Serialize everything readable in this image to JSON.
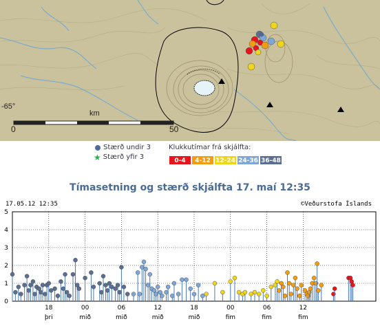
{
  "map": {
    "lat_label": "-65°",
    "scale_unit": "km",
    "scale_start": "0",
    "scale_end": "50",
    "colors": {
      "terrain": "#c9c29c",
      "contour": "#9a8d68",
      "water": "#6fa7d6",
      "glacier": "#e6f4f7",
      "volcano": "#000000"
    }
  },
  "legend": {
    "under": "Stærð undir 3",
    "over": "Stærð yfir 3",
    "hours_title": "Klukkutímar frá skjálfta:",
    "bins": [
      {
        "label": "0-4",
        "color": "#e8141c"
      },
      {
        "label": "4-12",
        "color": "#f39c12"
      },
      {
        "label": "12-24",
        "color": "#f1d51a"
      },
      {
        "label": "24-36",
        "color": "#7fa7d6"
      },
      {
        "label": "36-48",
        "color": "#5a6f92"
      }
    ]
  },
  "chart_title": "Tímasetning og stærð skjálfta   17. maí 12:35",
  "timestamp": "17.05.12 12:35",
  "copyright": "©Veðurstofa Íslands",
  "chart_data": {
    "type": "scatter",
    "x_ticks": [
      {
        "t": "18",
        "d": "þri"
      },
      {
        "t": "00",
        "d": "mið"
      },
      {
        "t": "06",
        "d": "mið"
      },
      {
        "t": "12",
        "d": "mið"
      },
      {
        "t": "18",
        "d": "mið"
      },
      {
        "t": "00",
        "d": "fim"
      },
      {
        "t": "06",
        "d": "fim"
      },
      {
        "t": "12",
        "d": "fim"
      }
    ],
    "xlim_hours": [
      -48,
      0
    ],
    "ylim": [
      0,
      5
    ],
    "y_ticks": [
      0,
      1,
      2,
      3,
      4,
      5
    ],
    "grid": true,
    "points": [
      [
        -48,
        1.5
      ],
      [
        -47.5,
        0.5
      ],
      [
        -47,
        0.8
      ],
      [
        -46.6,
        0.4
      ],
      [
        -46,
        0.9
      ],
      [
        -45.6,
        1.4
      ],
      [
        -45.3,
        0.6
      ],
      [
        -45,
        0.9
      ],
      [
        -44.6,
        1.1
      ],
      [
        -44.3,
        0.4
      ],
      [
        -44,
        0.8
      ],
      [
        -43.6,
        0.7
      ],
      [
        -43.3,
        0.5
      ],
      [
        -43,
        0.9
      ],
      [
        -42.6,
        0.4
      ],
      [
        -42.3,
        0.9
      ],
      [
        -42,
        1.0
      ],
      [
        -41.6,
        0.6
      ],
      [
        -41,
        0.7
      ],
      [
        -40.5,
        0.3
      ],
      [
        -40,
        1.1
      ],
      [
        -39.6,
        0.7
      ],
      [
        -39.3,
        1.5
      ],
      [
        -39,
        0.5
      ],
      [
        -38.6,
        0.3
      ],
      [
        -38,
        1.5
      ],
      [
        -37.6,
        2.3
      ],
      [
        -37.3,
        0.9
      ],
      [
        -37,
        0.7
      ],
      [
        -36,
        1.3
      ],
      [
        -35,
        1.6
      ],
      [
        -34.6,
        0.8
      ],
      [
        -33.6,
        1.0
      ],
      [
        -33.3,
        0.5
      ],
      [
        -33,
        1.4
      ],
      [
        -32.6,
        0.9
      ],
      [
        -32.3,
        0.6
      ],
      [
        -32,
        1.0
      ],
      [
        -31.6,
        0.8
      ],
      [
        -31,
        0.7
      ],
      [
        -30.6,
        0.9
      ],
      [
        -30.3,
        0.5
      ],
      [
        -30,
        1.9
      ],
      [
        -29.6,
        0.8
      ],
      [
        -29,
        0.4
      ],
      [
        -28,
        0.4
      ],
      [
        -27.3,
        1.6
      ],
      [
        -27,
        0.4
      ],
      [
        -26.6,
        1.9
      ],
      [
        -26.3,
        2.2
      ],
      [
        -26,
        1.8
      ],
      [
        -25.6,
        0.9
      ],
      [
        -25.3,
        1.5
      ],
      [
        -25,
        0.7
      ],
      [
        -24.6,
        0.6
      ],
      [
        -24.3,
        0.4
      ],
      [
        -24,
        0.8
      ],
      [
        -23.6,
        0.5
      ],
      [
        -23.3,
        0.3
      ],
      [
        -22.6,
        0.5
      ],
      [
        -22.3,
        0.8
      ],
      [
        -21.6,
        0.3
      ],
      [
        -21.3,
        1.0
      ],
      [
        -20.6,
        0.4
      ],
      [
        -20,
        1.2
      ],
      [
        -19.3,
        1.2
      ],
      [
        -18.6,
        0.7
      ],
      [
        -18,
        0.4
      ],
      [
        -17.3,
        0.9
      ],
      [
        -16.6,
        0.3
      ],
      [
        -16,
        0.4
      ],
      [
        -14.6,
        1.0
      ],
      [
        -13.3,
        0.5
      ],
      [
        -12,
        1.1
      ],
      [
        -11.3,
        1.3
      ],
      [
        -10.6,
        0.5
      ],
      [
        -10,
        0.4
      ],
      [
        -9.6,
        0.5
      ],
      [
        -8.6,
        0.4
      ],
      [
        -8,
        0.5
      ],
      [
        -7.3,
        0.4
      ],
      [
        -6.6,
        0.6
      ],
      [
        -6,
        0.3
      ],
      [
        -5.3,
        0.8
      ],
      [
        -4.6,
        0.9
      ],
      [
        -4.3,
        1.1
      ],
      [
        -4,
        0.6
      ],
      [
        -3.6,
        1.0
      ],
      [
        -3.3,
        0.8
      ],
      [
        -3,
        0.3
      ],
      [
        -2.6,
        1.6
      ],
      [
        -2.3,
        1.0
      ],
      [
        -2,
        0.4
      ],
      [
        -1.6,
        0.9
      ],
      [
        -1.3,
        1.3
      ],
      [
        -1,
        0.7
      ],
      [
        -0.6,
        0.3
      ],
      [
        -0.3,
        0.9
      ],
      [
        0.3,
        0.6
      ],
      [
        0.6,
        0.4
      ],
      [
        0.8,
        0.3
      ],
      [
        1.0,
        0.5
      ],
      [
        1.2,
        0.7
      ],
      [
        1.5,
        1.0
      ],
      [
        1.8,
        1.3
      ],
      [
        2.1,
        1.0
      ],
      [
        2.3,
        2.1
      ],
      [
        2.5,
        0.6
      ],
      [
        3,
        0.9
      ],
      [
        5,
        0.4
      ],
      [
        5.2,
        0.7
      ],
      [
        7.5,
        1.3
      ],
      [
        7.8,
        1.3
      ],
      [
        8,
        1.1
      ],
      [
        8.2,
        0.9
      ]
    ]
  }
}
